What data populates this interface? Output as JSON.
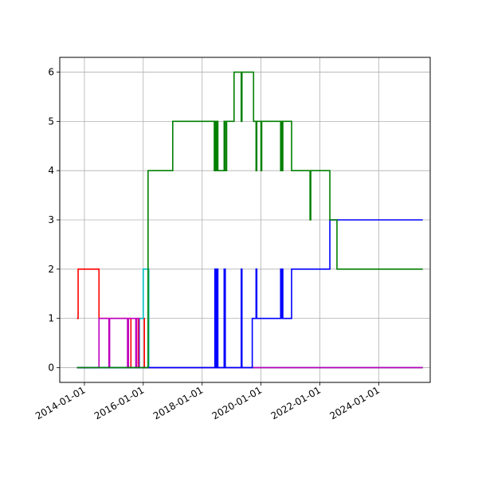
{
  "chart_data": {
    "type": "line",
    "title": "",
    "xlabel": "",
    "ylabel": "",
    "grid": true,
    "xlim": [
      "2013-03-01",
      "2025-10-01"
    ],
    "ylim": [
      -0.3,
      6.3
    ],
    "x_ticks": [
      "2014-01-01",
      "2016-01-01",
      "2018-01-01",
      "2020-01-01",
      "2022-01-01",
      "2024-01-01"
    ],
    "y_ticks": [
      0,
      1,
      2,
      3,
      4,
      5,
      6
    ],
    "series": [
      {
        "color": "#ff0000",
        "step": true,
        "points": [
          [
            "2013-10-01",
            1
          ],
          [
            "2013-10-15",
            2
          ],
          [
            "2014-07-01",
            1
          ],
          [
            "2015-08-01",
            0
          ],
          [
            "2015-11-01",
            1
          ],
          [
            "2016-01-15",
            0
          ],
          [
            "2025-07-01",
            0
          ]
        ]
      },
      {
        "color": "#00bfbf",
        "step": true,
        "points": [
          [
            "2013-10-01",
            0
          ],
          [
            "2014-07-01",
            0
          ],
          [
            "2015-11-15",
            1
          ],
          [
            "2016-01-01",
            2
          ],
          [
            "2016-03-10",
            0
          ],
          [
            "2025-07-01",
            0
          ]
        ]
      },
      {
        "color": "#bf00bf",
        "step": true,
        "points": [
          [
            "2013-10-01",
            0
          ],
          [
            "2014-07-01",
            1
          ],
          [
            "2014-11-01",
            0
          ],
          [
            "2014-11-10",
            1
          ],
          [
            "2015-06-20",
            0
          ],
          [
            "2015-07-01",
            1
          ],
          [
            "2015-10-01",
            0
          ],
          [
            "2015-10-10",
            1
          ],
          [
            "2015-11-10",
            0
          ],
          [
            "2025-07-01",
            0
          ]
        ]
      },
      {
        "color": "#0000ff",
        "step": true,
        "points": [
          [
            "2013-10-01",
            0
          ],
          [
            "2018-06-01",
            0
          ],
          [
            "2018-06-08",
            2
          ],
          [
            "2018-06-15",
            0
          ],
          [
            "2018-06-22",
            2
          ],
          [
            "2018-07-01",
            0
          ],
          [
            "2018-07-08",
            2
          ],
          [
            "2018-07-15",
            0
          ],
          [
            "2018-10-01",
            2
          ],
          [
            "2018-10-15",
            0
          ],
          [
            "2019-05-01",
            2
          ],
          [
            "2019-05-10",
            0
          ],
          [
            "2019-09-15",
            1
          ],
          [
            "2019-11-01",
            2
          ],
          [
            "2019-11-10",
            1
          ],
          [
            "2020-09-01",
            2
          ],
          [
            "2020-09-10",
            1
          ],
          [
            "2020-09-20",
            2
          ],
          [
            "2020-09-28",
            1
          ],
          [
            "2021-01-15",
            2
          ],
          [
            "2022-05-01",
            2
          ],
          [
            "2022-05-05",
            3
          ],
          [
            "2025-07-01",
            3
          ]
        ]
      },
      {
        "color": "#008000",
        "step": true,
        "points": [
          [
            "2013-10-01",
            0
          ],
          [
            "2016-03-01",
            4
          ],
          [
            "2017-01-01",
            5
          ],
          [
            "2018-06-01",
            4
          ],
          [
            "2018-06-08",
            5
          ],
          [
            "2018-06-15",
            4
          ],
          [
            "2018-06-22",
            5
          ],
          [
            "2018-07-01",
            4
          ],
          [
            "2018-07-08",
            5
          ],
          [
            "2018-07-15",
            4
          ],
          [
            "2018-10-01",
            5
          ],
          [
            "2018-10-15",
            4
          ],
          [
            "2018-11-01",
            5
          ],
          [
            "2019-02-01",
            6
          ],
          [
            "2019-05-01",
            5
          ],
          [
            "2019-05-10",
            6
          ],
          [
            "2019-10-01",
            5
          ],
          [
            "2019-11-01",
            4
          ],
          [
            "2019-11-10",
            5
          ],
          [
            "2020-01-01",
            4
          ],
          [
            "2020-01-10",
            5
          ],
          [
            "2020-09-01",
            4
          ],
          [
            "2020-09-10",
            5
          ],
          [
            "2020-09-20",
            4
          ],
          [
            "2020-09-28",
            5
          ],
          [
            "2021-01-15",
            4
          ],
          [
            "2021-07-15",
            4
          ],
          [
            "2021-09-01",
            3
          ],
          [
            "2021-09-10",
            4
          ],
          [
            "2022-05-01",
            4
          ],
          [
            "2022-05-05",
            3
          ],
          [
            "2022-08-01",
            2
          ],
          [
            "2025-07-01",
            2
          ]
        ]
      }
    ]
  }
}
